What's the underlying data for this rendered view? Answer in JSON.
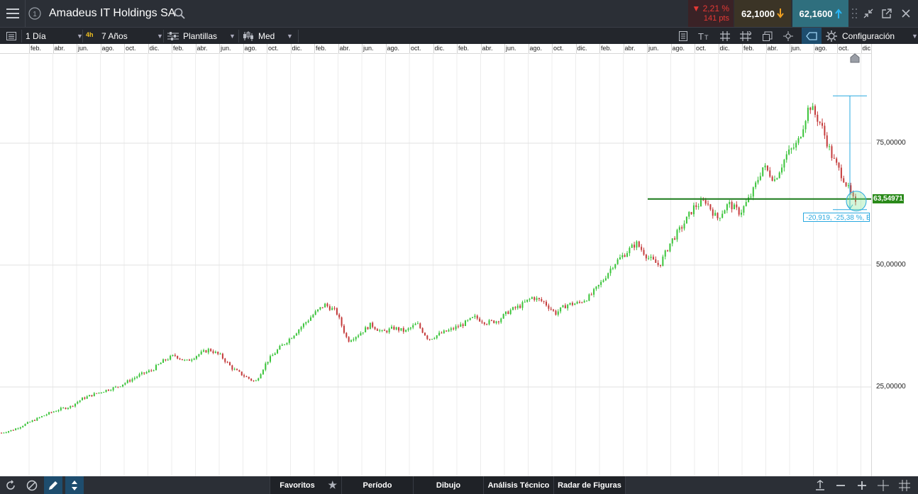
{
  "header": {
    "menu_icon": "hamburger-icon",
    "info_icon": "circled-one-icon",
    "instrument_name": "Amadeus IT Holdings SA",
    "search_icon": "search-icon",
    "change_pct": "▼ 2,21 %",
    "change_pts": "141 pts",
    "sell_price": "62,1000",
    "buy_price": "62,1600",
    "colors": {
      "down": "#e53935",
      "sell_arrow": "#f0a020",
      "buy_arrow": "#29b6f6",
      "buy_bg": "#2f6f7e"
    }
  },
  "toolbar": {
    "interval": "1 Día",
    "badge": "4h",
    "range": "7 Años",
    "templates": "Plantillas",
    "chart_style": "Med",
    "settings": "Configuración"
  },
  "months": [
    "feb.",
    "abr.",
    "jun.",
    "ago.",
    "oct.",
    "dic.",
    "feb.",
    "abr.",
    "jun.",
    "ago.",
    "oct.",
    "dic.",
    "feb.",
    "abr.",
    "jun.",
    "ago.",
    "oct.",
    "dic.",
    "feb.",
    "abr.",
    "jun.",
    "ago.",
    "oct.",
    "dic.",
    "feb.",
    "abr.",
    "jun.",
    "ago.",
    "oct.",
    "dic.",
    "feb.",
    "abr.",
    "jun.",
    "ago.",
    "oct.",
    "dic."
  ],
  "chart_data": {
    "type": "line",
    "style": "candlestick",
    "instrument": "Amadeus IT Holdings SA",
    "y_ticks": [
      "75,00000",
      "50,00000",
      "25,00000"
    ],
    "y_tick_values": [
      75,
      50,
      25
    ],
    "ylim": [
      6,
      86
    ],
    "grid": true,
    "x_labels": "month abbreviations (feb., abr., jun., ago., oct., dic.) repeating over ~7 years",
    "horizontal_line_value": 63.54971,
    "horizontal_line_label": "63,54971",
    "measure_label": "-20,919, -25,38 %, E",
    "close_points": [
      15.6,
      16.2,
      17.3,
      18.4,
      19.5,
      20.4,
      21.0,
      22.6,
      23.5,
      24.3,
      25.0,
      26.2,
      27.5,
      28.4,
      30.3,
      31.5,
      30.2,
      31.6,
      32.7,
      31.4,
      28.8,
      27.3,
      26.0,
      30.2,
      32.8,
      35.0,
      37.4,
      39.8,
      41.9,
      40.5,
      34.5,
      35.9,
      37.8,
      36.2,
      37.1,
      36.4,
      38.0,
      34.8,
      35.9,
      36.8,
      37.9,
      39.3,
      38.2,
      38.6,
      40.6,
      41.7,
      43.4,
      42.4,
      40.1,
      41.9,
      42.2,
      43.6,
      46.5,
      50.1,
      52.3,
      54.5,
      51.6,
      49.9,
      54.8,
      58.0,
      61.9,
      63.2,
      59.5,
      62.6,
      60.7,
      64.5,
      70.3,
      67.5,
      72.5,
      75.1,
      82.9,
      78.8,
      72.0,
      67.6,
      62.3
    ],
    "colors": {
      "up": "#3ac43a",
      "down": "#c43a3a",
      "hline": "#1a7a1a",
      "measure": "#29a9e0"
    }
  },
  "bottom": {
    "refresh_icon": "refresh-icon",
    "block_icon": "no-entry-icon",
    "pencil_icon": "pencil-icon",
    "arrows_icon": "up-down-arrows-icon",
    "favorites": "Favoritos",
    "period": "Período",
    "drawing": "Dibujo",
    "technical": "Análisis Técnico",
    "patterns": "Radar de Figuras"
  }
}
